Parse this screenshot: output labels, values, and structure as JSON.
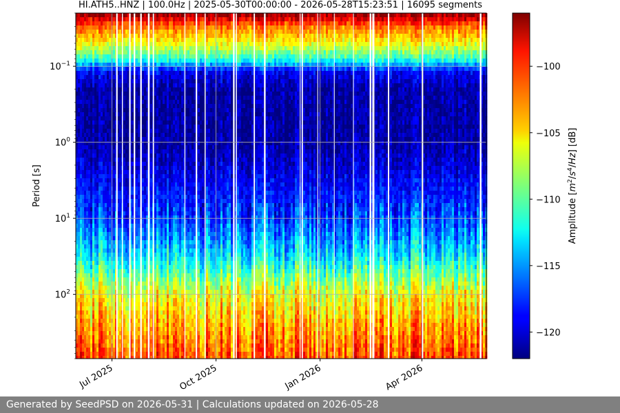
{
  "chart_data": {
    "type": "heatmap",
    "title": "HI.ATH5..HNZ | 100.0Hz | 2025-05-30T00:00:00 - 2026-05-28T15:23:51 | 16095 segments",
    "ylabel": "Period [s]",
    "y_scale": "log",
    "y_axis_inverted": true,
    "ylim": [
      0.02,
      700
    ],
    "y_ticks": [
      {
        "value": 0.1,
        "label": "10^-1",
        "base": "10",
        "exp": "−1"
      },
      {
        "value": 1,
        "label": "10^0",
        "base": "10",
        "exp": "0"
      },
      {
        "value": 10,
        "label": "10^1",
        "base": "10",
        "exp": "1"
      },
      {
        "value": 100,
        "label": "10^2",
        "base": "10",
        "exp": "2"
      }
    ],
    "xlim": [
      "2025-05-30",
      "2026-05-28"
    ],
    "x_ticks": [
      {
        "date": "2025-07-01",
        "label": "Jul 2025"
      },
      {
        "date": "2025-10-01",
        "label": "Oct 2025"
      },
      {
        "date": "2026-01-01",
        "label": "Jan 2026"
      },
      {
        "date": "2026-04-01",
        "label": "Apr 2026"
      }
    ],
    "colorbar": {
      "label": "Amplitude [m²/s⁴/Hz] [dB]",
      "colormap": "jet",
      "range": [
        -122,
        -96
      ],
      "ticks": [
        -100,
        -105,
        -110,
        -115,
        -120
      ],
      "tick_labels": [
        "−100",
        "−105",
        "−110",
        "−115",
        "−120"
      ]
    },
    "period_profile": [
      {
        "period": 0.02,
        "db": -96
      },
      {
        "period": 0.03,
        "db": -102
      },
      {
        "period": 0.05,
        "db": -106
      },
      {
        "period": 0.08,
        "db": -111
      },
      {
        "period": 0.12,
        "db": -119
      },
      {
        "period": 0.2,
        "db": -121
      },
      {
        "period": 1,
        "db": -121
      },
      {
        "period": 3,
        "db": -119
      },
      {
        "period": 10,
        "db": -117
      },
      {
        "period": 30,
        "db": -113
      },
      {
        "period": 60,
        "db": -109
      },
      {
        "period": 100,
        "db": -106
      },
      {
        "period": 300,
        "db": -103
      },
      {
        "period": 700,
        "db": -101
      }
    ],
    "grid": true
  },
  "footer": {
    "text": "Generated by SeedPSD on 2026-05-31 | Calculations updated on 2026-05-28"
  }
}
